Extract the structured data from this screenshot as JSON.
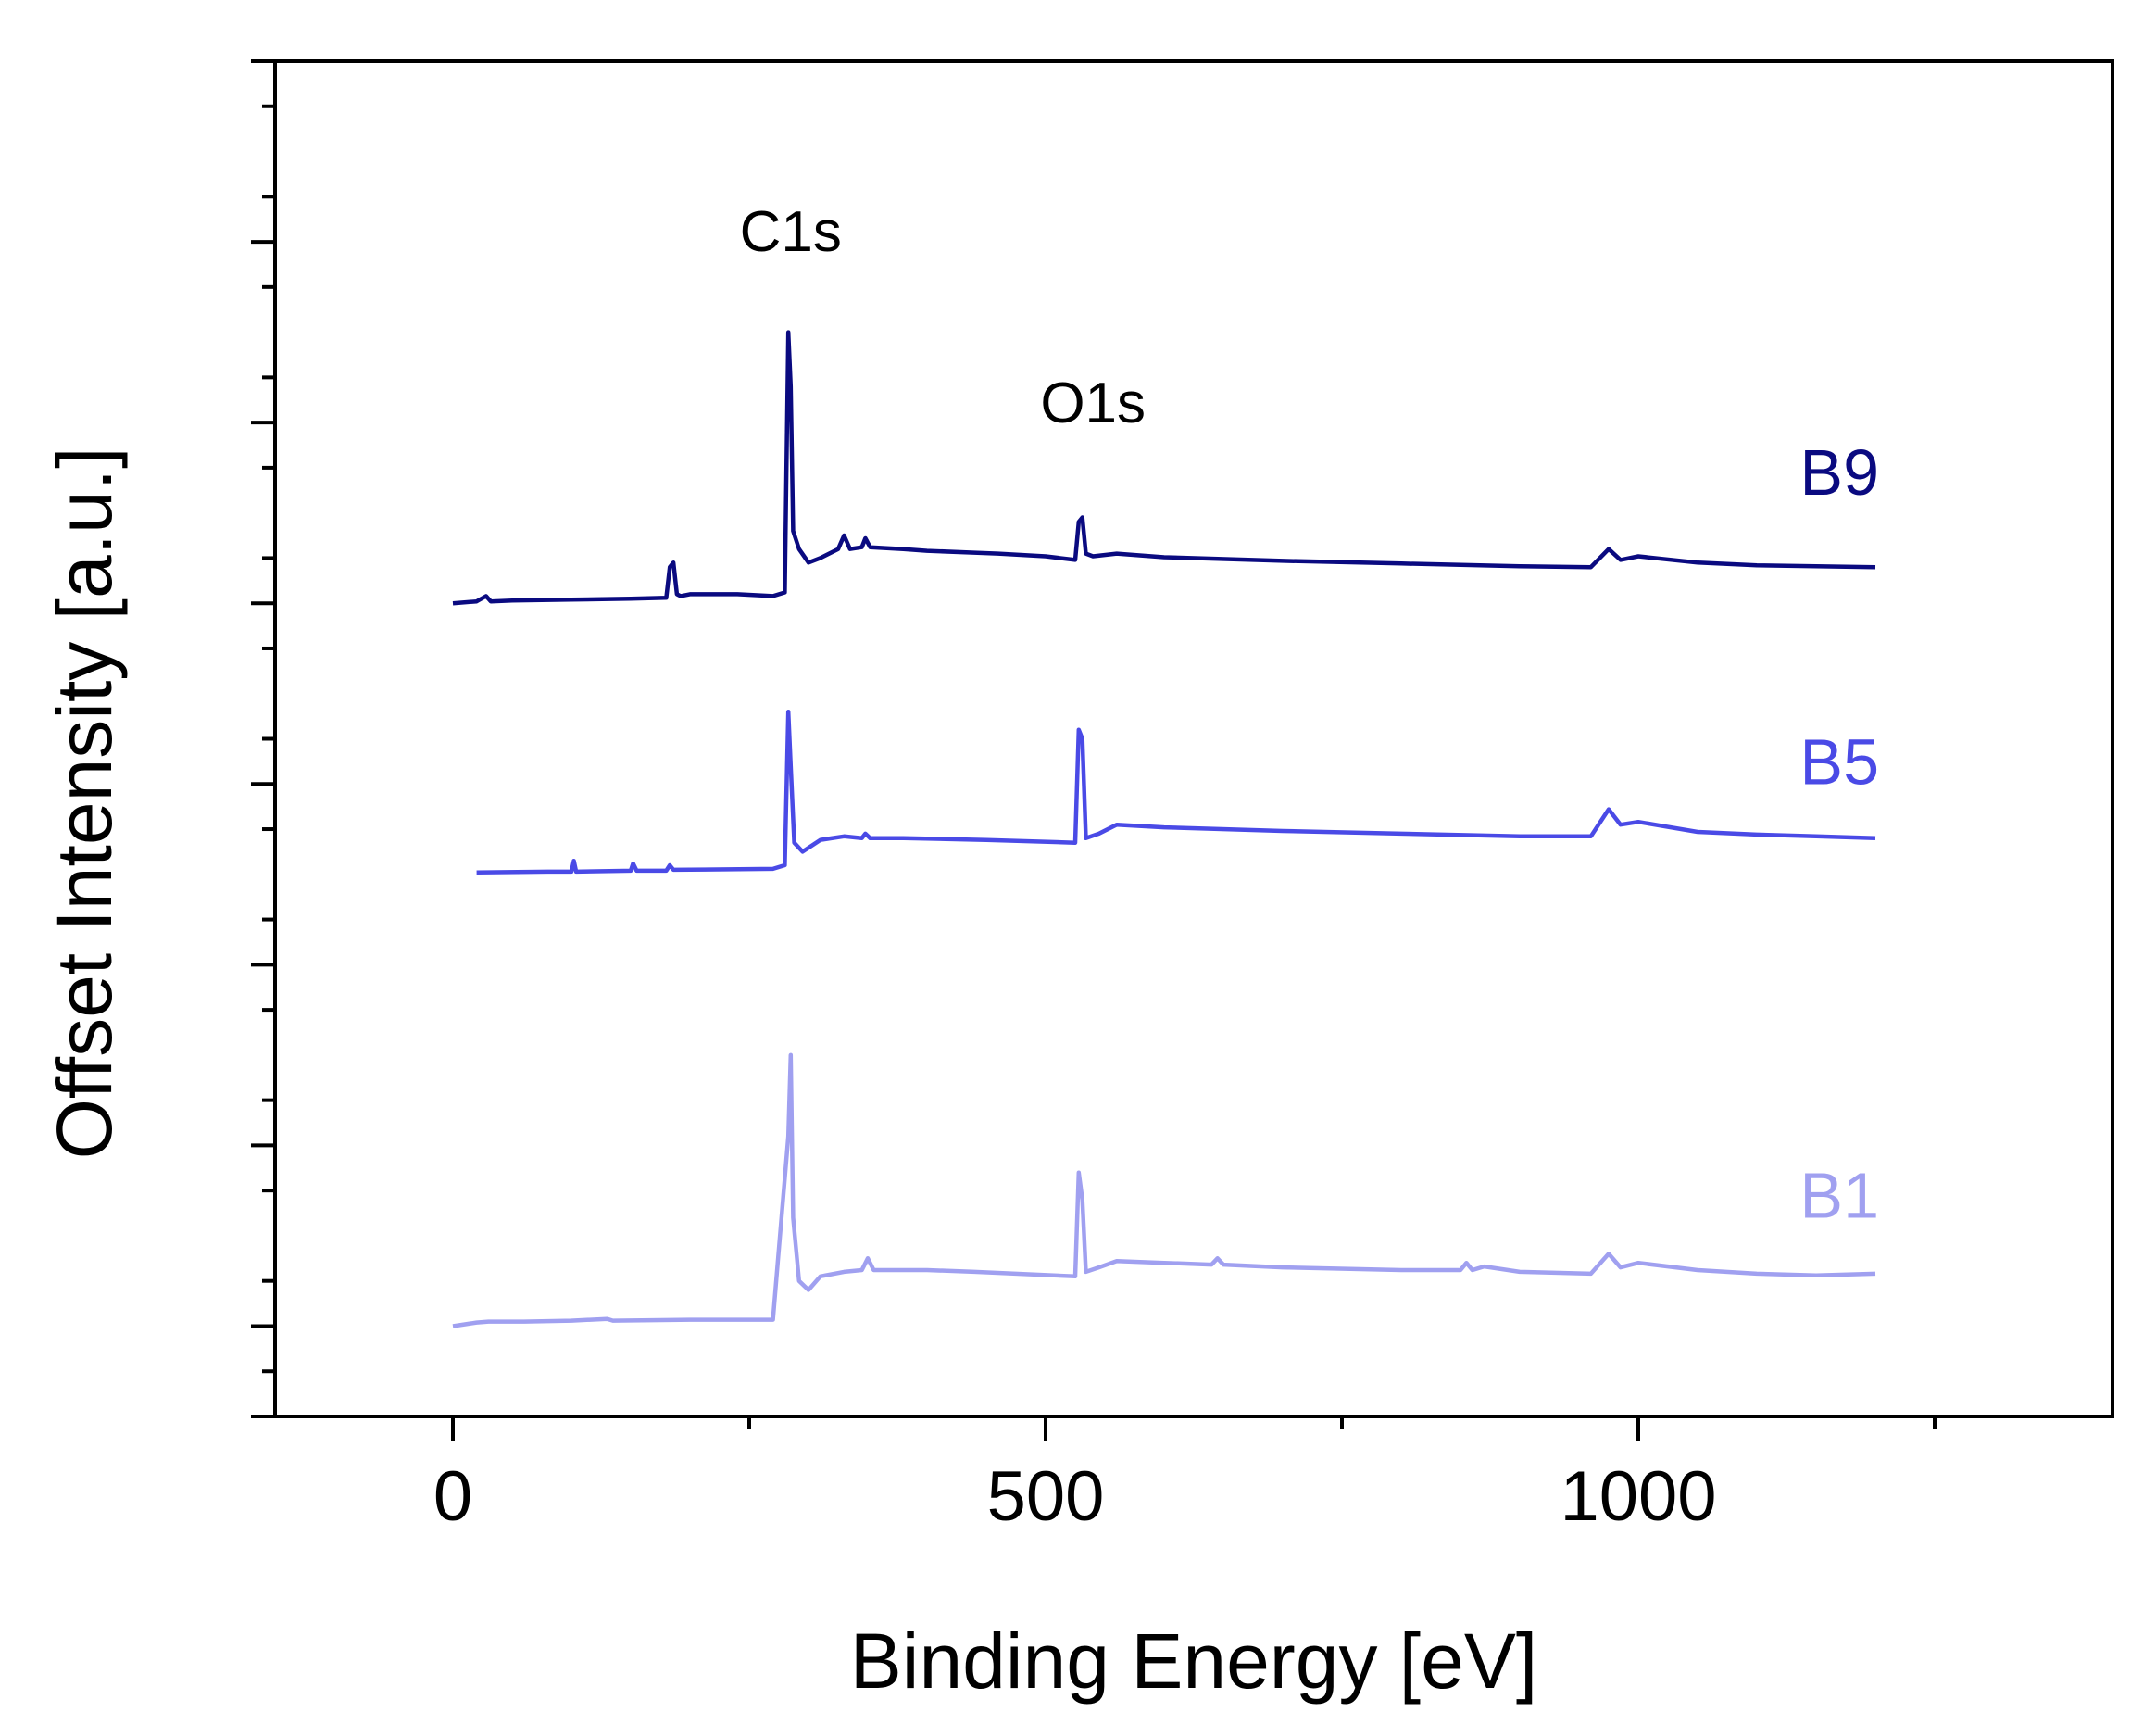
{
  "chart_data": {
    "type": "line",
    "title": "",
    "xlabel": "Binding Energy [eV]",
    "ylabel": "Offset Intensity [a.u.]",
    "xlim": [
      -150,
      1400
    ],
    "ylim": [
      0,
      15
    ],
    "x_ticks": [
      0,
      500,
      1000
    ],
    "x_minor_ticks": [
      250,
      750,
      1250
    ],
    "y_tick_labels_shown": false,
    "y_major_ticks": [
      1,
      3,
      5,
      7,
      9,
      11,
      13,
      15
    ],
    "y_minor_ticks": [
      0.5,
      1.5,
      2.5,
      3.5,
      4.5,
      5.5,
      6.5,
      7.5,
      8.5,
      9.5,
      10.5,
      11.5,
      12.5,
      13.5,
      14.5
    ],
    "legend": "inline labels at right",
    "annotations": [
      {
        "text": "C1s",
        "x": 285,
        "y": 12.9
      },
      {
        "text": "O1s",
        "x": 540,
        "y": 11.0
      }
    ],
    "series": [
      {
        "name": "B9",
        "color": "#0a0a80",
        "label_value": 10.2,
        "points": [
          [
            0,
            9.0
          ],
          [
            20,
            9.02
          ],
          [
            28,
            9.08
          ],
          [
            32,
            9.02
          ],
          [
            50,
            9.03
          ],
          [
            100,
            9.04
          ],
          [
            150,
            9.05
          ],
          [
            180,
            9.06
          ],
          [
            183,
            9.4
          ],
          [
            186,
            9.45
          ],
          [
            189,
            9.1
          ],
          [
            192,
            9.08
          ],
          [
            200,
            9.1
          ],
          [
            240,
            9.1
          ],
          [
            270,
            9.08
          ],
          [
            280,
            9.12
          ],
          [
            283,
            12.0
          ],
          [
            285,
            11.4
          ],
          [
            287,
            9.8
          ],
          [
            292,
            9.6
          ],
          [
            300,
            9.45
          ],
          [
            310,
            9.5
          ],
          [
            325,
            9.6
          ],
          [
            330,
            9.75
          ],
          [
            335,
            9.6
          ],
          [
            345,
            9.62
          ],
          [
            348,
            9.72
          ],
          [
            352,
            9.62
          ],
          [
            380,
            9.6
          ],
          [
            400,
            9.58
          ],
          [
            440,
            9.56
          ],
          [
            460,
            9.55
          ],
          [
            500,
            9.52
          ],
          [
            525,
            9.48
          ],
          [
            528,
            9.9
          ],
          [
            531,
            9.95
          ],
          [
            534,
            9.55
          ],
          [
            540,
            9.52
          ],
          [
            560,
            9.55
          ],
          [
            600,
            9.51
          ],
          [
            700,
            9.47
          ],
          [
            800,
            9.44
          ],
          [
            900,
            9.41
          ],
          [
            960,
            9.4
          ],
          [
            975,
            9.6
          ],
          [
            985,
            9.48
          ],
          [
            1000,
            9.52
          ],
          [
            1050,
            9.45
          ],
          [
            1100,
            9.42
          ],
          [
            1150,
            9.41
          ],
          [
            1200,
            9.4
          ]
        ]
      },
      {
        "name": "B5",
        "color": "#4a4ae6",
        "label_value": 7.0,
        "points": [
          [
            20,
            6.02
          ],
          [
            80,
            6.03
          ],
          [
            100,
            6.03
          ],
          [
            102,
            6.15
          ],
          [
            104,
            6.03
          ],
          [
            150,
            6.04
          ],
          [
            152,
            6.12
          ],
          [
            155,
            6.04
          ],
          [
            180,
            6.04
          ],
          [
            183,
            6.1
          ],
          [
            186,
            6.05
          ],
          [
            270,
            6.06
          ],
          [
            280,
            6.1
          ],
          [
            283,
            7.8
          ],
          [
            285,
            7.2
          ],
          [
            288,
            6.35
          ],
          [
            295,
            6.25
          ],
          [
            310,
            6.38
          ],
          [
            330,
            6.42
          ],
          [
            345,
            6.4
          ],
          [
            348,
            6.45
          ],
          [
            352,
            6.4
          ],
          [
            380,
            6.4
          ],
          [
            450,
            6.38
          ],
          [
            525,
            6.35
          ],
          [
            528,
            7.6
          ],
          [
            531,
            7.5
          ],
          [
            534,
            6.4
          ],
          [
            545,
            6.45
          ],
          [
            560,
            6.55
          ],
          [
            600,
            6.52
          ],
          [
            700,
            6.48
          ],
          [
            800,
            6.45
          ],
          [
            900,
            6.42
          ],
          [
            960,
            6.42
          ],
          [
            975,
            6.72
          ],
          [
            985,
            6.55
          ],
          [
            1000,
            6.58
          ],
          [
            1050,
            6.47
          ],
          [
            1100,
            6.44
          ],
          [
            1150,
            6.42
          ],
          [
            1200,
            6.4
          ]
        ]
      },
      {
        "name": "B1",
        "color": "#a0a0f0",
        "label_value": 2.2,
        "points": [
          [
            0,
            1.0
          ],
          [
            20,
            1.04
          ],
          [
            30,
            1.05
          ],
          [
            60,
            1.05
          ],
          [
            100,
            1.06
          ],
          [
            130,
            1.08
          ],
          [
            135,
            1.06
          ],
          [
            200,
            1.07
          ],
          [
            270,
            1.07
          ],
          [
            283,
            3.1
          ],
          [
            285,
            4.0
          ],
          [
            287,
            2.2
          ],
          [
            292,
            1.5
          ],
          [
            300,
            1.4
          ],
          [
            310,
            1.55
          ],
          [
            330,
            1.6
          ],
          [
            345,
            1.62
          ],
          [
            350,
            1.75
          ],
          [
            355,
            1.62
          ],
          [
            400,
            1.62
          ],
          [
            440,
            1.6
          ],
          [
            525,
            1.55
          ],
          [
            528,
            2.7
          ],
          [
            531,
            2.4
          ],
          [
            534,
            1.6
          ],
          [
            545,
            1.65
          ],
          [
            560,
            1.72
          ],
          [
            600,
            1.7
          ],
          [
            640,
            1.68
          ],
          [
            645,
            1.75
          ],
          [
            650,
            1.68
          ],
          [
            700,
            1.65
          ],
          [
            800,
            1.62
          ],
          [
            850,
            1.62
          ],
          [
            855,
            1.7
          ],
          [
            860,
            1.62
          ],
          [
            870,
            1.66
          ],
          [
            900,
            1.6
          ],
          [
            960,
            1.58
          ],
          [
            975,
            1.8
          ],
          [
            985,
            1.65
          ],
          [
            1000,
            1.7
          ],
          [
            1050,
            1.62
          ],
          [
            1100,
            1.58
          ],
          [
            1150,
            1.56
          ],
          [
            1200,
            1.58
          ]
        ]
      }
    ]
  }
}
